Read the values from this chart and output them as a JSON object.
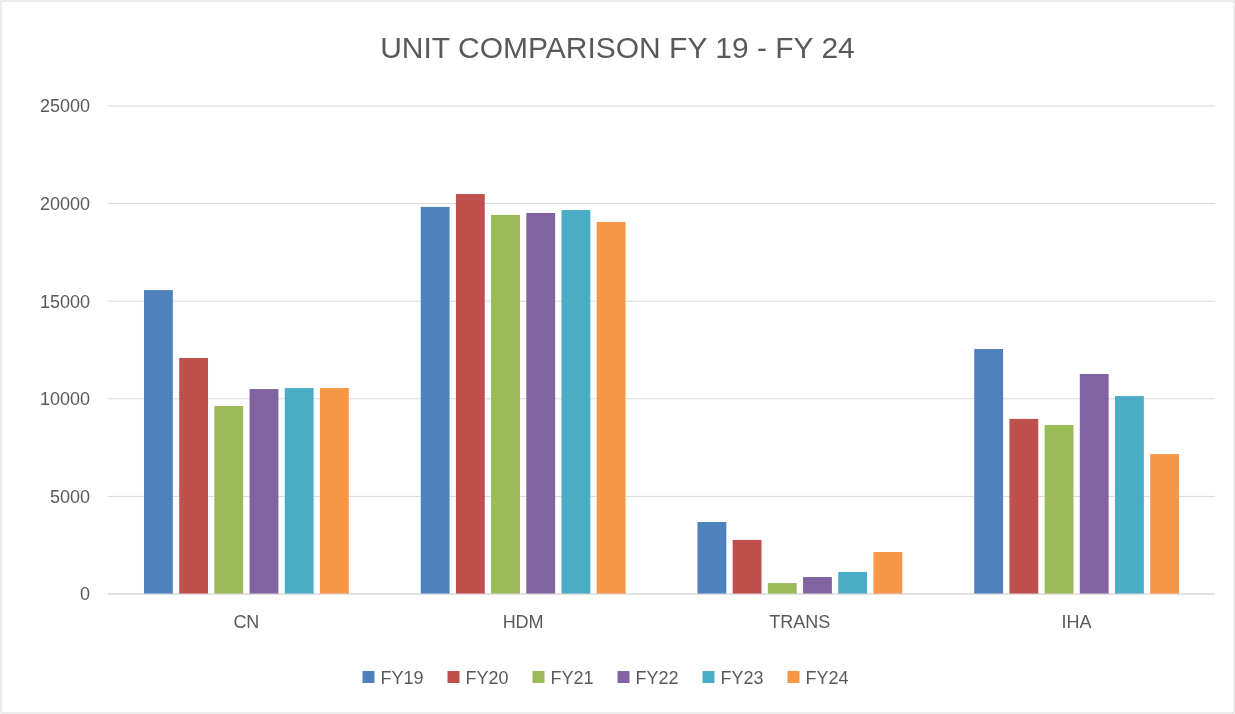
{
  "chart_data": {
    "type": "bar",
    "title": "UNIT COMPARISON FY 19 - FY 24",
    "categories": [
      "CN",
      "HDM",
      "TRANS",
      "IHA"
    ],
    "series": [
      {
        "name": "FY19",
        "color": "#4f81bd",
        "values": [
          15570,
          19830,
          3690,
          12550
        ]
      },
      {
        "name": "FY20",
        "color": "#c0504d",
        "values": [
          12090,
          20490,
          2770,
          8970
        ]
      },
      {
        "name": "FY21",
        "color": "#9bbb59",
        "values": [
          9630,
          19420,
          560,
          8660
        ]
      },
      {
        "name": "FY22",
        "color": "#8064a2",
        "values": [
          10500,
          19520,
          870,
          11270
        ]
      },
      {
        "name": "FY23",
        "color": "#4bacc6",
        "values": [
          10550,
          19670,
          1130,
          10140
        ]
      },
      {
        "name": "FY24",
        "color": "#f79646",
        "values": [
          10550,
          19060,
          2150,
          7170
        ]
      }
    ],
    "ylim": [
      0,
      25000
    ],
    "yticks": [
      0,
      5000,
      10000,
      15000,
      20000,
      25000
    ],
    "grid": "y",
    "legend": "bottom"
  }
}
